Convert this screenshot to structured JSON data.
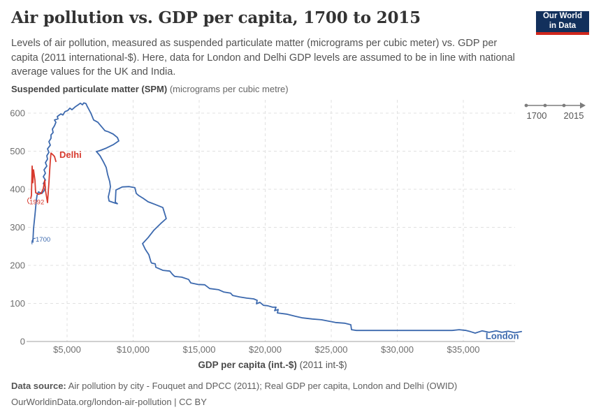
{
  "header": {
    "title": "Air pollution vs. GDP per capita, 1700 to 2015",
    "subtitle": "Levels of air pollution, measured as suspended particulate matter (micrograms per cubic meter) vs. GDP per capita (2011 international-$). Here, data for London and Delhi GDP levels are assumed to be in line with national average values for the UK and India.",
    "logo": {
      "line1": "Our World",
      "line2": "in Data"
    }
  },
  "axis": {
    "y_title_bold": "Suspended particulate matter (SPM)",
    "y_title_normal": " (micrograms per cubic metre)",
    "x_title_bold": "GDP per capita (int.-$)",
    "x_title_normal": " (2011 int-$)"
  },
  "timeline": {
    "start_label": "1700",
    "end_label": "2015"
  },
  "footer": {
    "datasource_label": "Data source:",
    "datasource_text": " Air pollution by city - Fouquet and DPCC (2011); Real GDP per capita, London and Delhi (OWID)",
    "url_line": "OurWorldinData.org/london-air-pollution | CC BY"
  },
  "colors": {
    "london": "#3c69ae",
    "delhi": "#d73a2e",
    "grid": "#e0e0e0",
    "axis": "#a0a0a0",
    "tick_text": "#6e6e6e",
    "timeline": "#7d7d7d",
    "navy": "#12305c",
    "logo_red": "#d0271d"
  },
  "chart_data": {
    "type": "line",
    "title": "Air pollution vs. GDP per capita, 1700 to 2015",
    "xlabel": "GDP per capita (int.-$) (2011 int-$)",
    "ylabel": "Suspended particulate matter (SPM) (micrograms per cubic metre)",
    "xlim": [
      2000,
      39500
    ],
    "ylim": [
      0,
      600
    ],
    "grid": true,
    "x_ticks": [
      5000,
      10000,
      15000,
      20000,
      25000,
      30000,
      35000
    ],
    "x_tick_labels": [
      "$5,000",
      "$10,000",
      "$15,000",
      "$20,000",
      "$25,000",
      "$30,000",
      "$35,000"
    ],
    "y_ticks": [
      0,
      100,
      200,
      300,
      400,
      500,
      600
    ],
    "series": [
      {
        "name": "London",
        "color": "#3c69ae",
        "points": [
          [
            2410,
            261
          ],
          [
            2460,
            297
          ],
          [
            2570,
            334
          ],
          [
            2620,
            352
          ],
          [
            2670,
            371
          ],
          [
            2725,
            384
          ],
          [
            2830,
            393
          ],
          [
            3095,
            389
          ],
          [
            3255,
            396
          ],
          [
            3360,
            406
          ],
          [
            3200,
            415
          ],
          [
            3360,
            424
          ],
          [
            3200,
            433
          ],
          [
            3360,
            442
          ],
          [
            3255,
            451
          ],
          [
            3465,
            461
          ],
          [
            3360,
            470
          ],
          [
            3520,
            479
          ],
          [
            3465,
            488
          ],
          [
            3625,
            497
          ],
          [
            3520,
            506
          ],
          [
            3730,
            516
          ],
          [
            3625,
            525
          ],
          [
            3785,
            534
          ],
          [
            3785,
            543
          ],
          [
            3940,
            549
          ],
          [
            3890,
            558
          ],
          [
            4050,
            567
          ],
          [
            4155,
            576
          ],
          [
            4050,
            582
          ],
          [
            4310,
            585
          ],
          [
            4260,
            591
          ],
          [
            4525,
            598
          ],
          [
            4685,
            595
          ],
          [
            4840,
            604
          ],
          [
            5055,
            607
          ],
          [
            5210,
            613
          ],
          [
            5370,
            609
          ],
          [
            5635,
            617
          ],
          [
            5845,
            622
          ],
          [
            6005,
            626
          ],
          [
            6165,
            622
          ],
          [
            6270,
            627
          ],
          [
            6430,
            625
          ],
          [
            6535,
            617
          ],
          [
            6800,
            600
          ],
          [
            7010,
            582
          ],
          [
            7330,
            576
          ],
          [
            7590,
            565
          ],
          [
            7860,
            554
          ],
          [
            8120,
            551
          ],
          [
            8490,
            545
          ],
          [
            8810,
            536
          ],
          [
            8915,
            527
          ],
          [
            8490,
            517
          ],
          [
            7965,
            508
          ],
          [
            7435,
            501
          ],
          [
            7220,
            499
          ],
          [
            7490,
            488
          ],
          [
            7750,
            472
          ],
          [
            7965,
            457
          ],
          [
            8070,
            439
          ],
          [
            8230,
            420
          ],
          [
            8280,
            407
          ],
          [
            8230,
            396
          ],
          [
            8120,
            380
          ],
          [
            8180,
            369
          ],
          [
            8600,
            364
          ],
          [
            8810,
            362
          ],
          [
            8650,
            366
          ],
          [
            8700,
            398
          ],
          [
            9180,
            406
          ],
          [
            9710,
            407
          ],
          [
            10130,
            404
          ],
          [
            10240,
            389
          ],
          [
            10400,
            384
          ],
          [
            10770,
            376
          ],
          [
            11140,
            367
          ],
          [
            11300,
            365
          ],
          [
            11670,
            360
          ],
          [
            12250,
            352
          ],
          [
            12510,
            323
          ],
          [
            12090,
            310
          ],
          [
            11560,
            292
          ],
          [
            11140,
            273
          ],
          [
            10715,
            257
          ],
          [
            10925,
            242
          ],
          [
            11190,
            228
          ],
          [
            11350,
            209
          ],
          [
            11400,
            206
          ],
          [
            11670,
            204
          ],
          [
            11720,
            195
          ],
          [
            12250,
            187
          ],
          [
            12780,
            185
          ],
          [
            12990,
            176
          ],
          [
            13150,
            171
          ],
          [
            13680,
            169
          ],
          [
            14200,
            163
          ],
          [
            14365,
            154
          ],
          [
            14895,
            150
          ],
          [
            15425,
            149
          ],
          [
            15795,
            139
          ],
          [
            16480,
            136
          ],
          [
            16850,
            130
          ],
          [
            17380,
            127
          ],
          [
            17540,
            121
          ],
          [
            18070,
            117
          ],
          [
            18600,
            114
          ],
          [
            19125,
            112
          ],
          [
            19390,
            108
          ],
          [
            19340,
            99
          ],
          [
            19600,
            103
          ],
          [
            19870,
            95
          ],
          [
            20185,
            94
          ],
          [
            20555,
            90
          ],
          [
            20820,
            90
          ],
          [
            20715,
            81
          ],
          [
            20980,
            84
          ],
          [
            20925,
            75
          ],
          [
            21615,
            72
          ],
          [
            22300,
            66
          ],
          [
            22830,
            62
          ],
          [
            23570,
            59
          ],
          [
            24260,
            57
          ],
          [
            25315,
            50
          ],
          [
            26005,
            48
          ],
          [
            26480,
            44
          ],
          [
            26535,
            31
          ],
          [
            26905,
            29
          ],
          [
            29550,
            29
          ],
          [
            31665,
            29
          ],
          [
            33095,
            29
          ],
          [
            34155,
            29
          ],
          [
            34680,
            31
          ],
          [
            35210,
            29
          ],
          [
            35530,
            26
          ],
          [
            35900,
            22
          ],
          [
            36430,
            28
          ],
          [
            36955,
            24
          ],
          [
            37490,
            28
          ],
          [
            37910,
            24
          ],
          [
            38400,
            27
          ],
          [
            38900,
            23
          ],
          [
            39400,
            26
          ]
        ]
      },
      {
        "name": "Delhi",
        "color": "#d73a2e",
        "points": [
          [
            2250,
            376
          ],
          [
            2300,
            384
          ],
          [
            2355,
            461
          ],
          [
            2405,
            417
          ],
          [
            2460,
            451
          ],
          [
            2565,
            424
          ],
          [
            2620,
            391
          ],
          [
            2830,
            387
          ],
          [
            3040,
            389
          ],
          [
            3200,
            402
          ],
          [
            3305,
            424
          ],
          [
            3360,
            398
          ],
          [
            3465,
            376
          ],
          [
            3520,
            365
          ],
          [
            3625,
            417
          ],
          [
            3680,
            450
          ],
          [
            3730,
            475
          ],
          [
            3785,
            495
          ],
          [
            3940,
            490
          ],
          [
            4050,
            486
          ],
          [
            4155,
            473
          ]
        ]
      }
    ],
    "annotations": [
      {
        "text": "Delhi",
        "x": 4418,
        "y": 483,
        "color": "#d73a2e",
        "bold": true,
        "size": 13
      },
      {
        "text": "London",
        "x": 36690,
        "y": 6,
        "color": "#3c69ae",
        "bold": true,
        "size": 13
      },
      {
        "text": "1992",
        "x": 2150,
        "y": 361,
        "color": "#d73a2e",
        "bold": false,
        "size": 9.5
      },
      {
        "text": "1700",
        "x": 2620,
        "y": 262,
        "color": "#3c69ae",
        "bold": false,
        "size": 9.5
      }
    ],
    "legend_position": "none"
  }
}
